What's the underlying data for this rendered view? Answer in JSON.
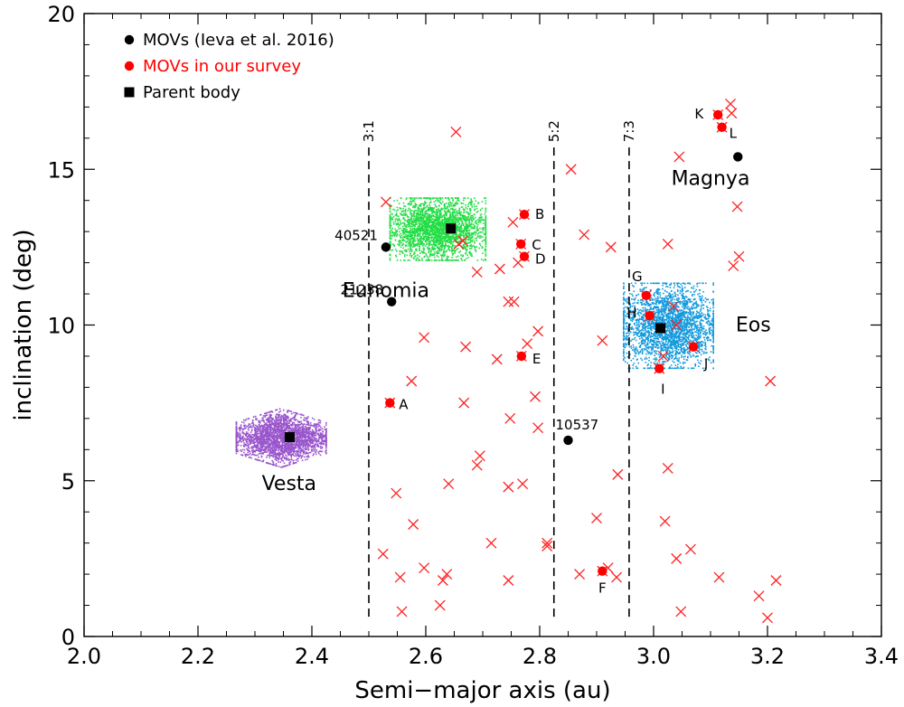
{
  "chart_data": {
    "type": "scatter",
    "xlabel": "Semi−major axis (au)",
    "ylabel": "inclination (deg)",
    "xlim": [
      2.0,
      3.4
    ],
    "ylim": [
      0,
      20
    ],
    "xticks": [
      "2.0",
      "2.2",
      "2.4",
      "2.6",
      "2.8",
      "3.0",
      "3.2",
      "3.4"
    ],
    "yticks": [
      "0",
      "5",
      "10",
      "15",
      "20"
    ],
    "colors": {
      "movs": "#000000",
      "survey": "#ff0000",
      "cross": "#ff2020",
      "vesta": "#9955cc",
      "eunomia": "#22dd44",
      "eos": "#1199dd"
    },
    "legend": [
      {
        "label": "MOVs (Ieva et al. 2016)",
        "color": "#000000",
        "marker": "circle"
      },
      {
        "label": "MOVs in our survey",
        "color": "#ff0000",
        "marker": "circle"
      },
      {
        "label": "Parent body",
        "color": "#000000",
        "marker": "square"
      }
    ],
    "resonances": [
      {
        "label": "3:1",
        "a": 2.5,
        "i_low": 0.6,
        "i_high": 15.7
      },
      {
        "label": "5:2",
        "a": 2.825,
        "i_low": 0.6,
        "i_high": 15.7
      },
      {
        "label": "7:3",
        "a": 2.957,
        "i_low": 0.6,
        "i_high": 15.7
      }
    ],
    "families": [
      {
        "name": "Vesta",
        "color": "#9955cc",
        "a_center": 2.345,
        "i_center": 6.4,
        "a_halfwidth": 0.075,
        "i_halfwidth": 0.9,
        "label_a": 2.36,
        "label_i": 4.7
      },
      {
        "name": "Eunomia",
        "color": "#22dd44",
        "a_center": 2.62,
        "i_center": 13.1,
        "a_halfwidth": 0.08,
        "i_halfwidth": 0.95,
        "label_a": 2.53,
        "label_i": 10.9
      },
      {
        "name": "Eos",
        "color": "#1199dd",
        "a_center": 3.025,
        "i_center": 10.0,
        "a_halfwidth": 0.075,
        "i_halfwidth": 1.3,
        "label_a": 3.175,
        "label_i": 9.8
      }
    ],
    "extra_labels": [
      {
        "text": "Magnya",
        "a": 3.1,
        "i": 14.5
      }
    ],
    "parent_bodies": [
      {
        "a": 2.361,
        "i": 6.4
      },
      {
        "a": 2.644,
        "i": 13.1
      },
      {
        "a": 3.012,
        "i": 9.9
      }
    ],
    "movs_ieva": [
      {
        "a": 2.53,
        "i": 12.5,
        "label": "40521"
      },
      {
        "a": 2.54,
        "i": 10.75,
        "label": "21238"
      },
      {
        "a": 2.85,
        "i": 6.3,
        "label": "10537"
      },
      {
        "a": 3.148,
        "i": 15.4,
        "label": ""
      }
    ],
    "movs_survey": [
      {
        "a": 2.537,
        "i": 7.5,
        "label": "A"
      },
      {
        "a": 2.773,
        "i": 13.55,
        "label": "B"
      },
      {
        "a": 2.767,
        "i": 12.6,
        "label": "C"
      },
      {
        "a": 2.773,
        "i": 12.2,
        "label": "D"
      },
      {
        "a": 2.768,
        "i": 9.0,
        "label": "E"
      },
      {
        "a": 2.91,
        "i": 2.1,
        "label": "F"
      },
      {
        "a": 2.987,
        "i": 10.95,
        "label": "G"
      },
      {
        "a": 2.993,
        "i": 10.3,
        "label": "H"
      },
      {
        "a": 3.01,
        "i": 8.6,
        "label": "I"
      },
      {
        "a": 3.07,
        "i": 9.3,
        "label": "J"
      },
      {
        "a": 3.113,
        "i": 16.75,
        "label": "K"
      },
      {
        "a": 3.12,
        "i": 16.35,
        "label": "L"
      }
    ],
    "other_crosses": [
      [
        2.525,
        2.65
      ],
      [
        2.555,
        1.9
      ],
      [
        2.558,
        0.8
      ],
      [
        2.548,
        4.6
      ],
      [
        2.578,
        3.6
      ],
      [
        2.575,
        8.2
      ],
      [
        2.53,
        13.95
      ],
      [
        2.597,
        9.6
      ],
      [
        2.597,
        2.2
      ],
      [
        2.625,
        1.0
      ],
      [
        2.63,
        1.8
      ],
      [
        2.637,
        2.0
      ],
      [
        2.658,
        12.6
      ],
      [
        2.665,
        12.7
      ],
      [
        2.667,
        7.5
      ],
      [
        2.67,
        9.3
      ],
      [
        2.653,
        16.2
      ],
      [
        2.64,
        4.9
      ],
      [
        2.69,
        5.5
      ],
      [
        2.695,
        5.8
      ],
      [
        2.69,
        11.7
      ],
      [
        2.715,
        3.0
      ],
      [
        2.725,
        8.9
      ],
      [
        2.73,
        11.8
      ],
      [
        2.745,
        10.75
      ],
      [
        2.748,
        7.0
      ],
      [
        2.745,
        4.8
      ],
      [
        2.755,
        10.75
      ],
      [
        2.753,
        13.3
      ],
      [
        2.762,
        12.0
      ],
      [
        2.77,
        4.9
      ],
      [
        2.778,
        9.4
      ],
      [
        2.792,
        7.7
      ],
      [
        2.797,
        9.8
      ],
      [
        2.797,
        6.7
      ],
      [
        2.745,
        1.8
      ],
      [
        2.813,
        3.0
      ],
      [
        2.813,
        2.9
      ],
      [
        2.855,
        15.0
      ],
      [
        2.87,
        2.0
      ],
      [
        2.878,
        12.9
      ],
      [
        2.9,
        3.8
      ],
      [
        2.91,
        9.5
      ],
      [
        2.92,
        2.2
      ],
      [
        2.925,
        12.5
      ],
      [
        2.937,
        5.2
      ],
      [
        2.935,
        1.9
      ],
      [
        3.017,
        9.0
      ],
      [
        3.02,
        3.7
      ],
      [
        3.025,
        12.6
      ],
      [
        3.025,
        5.4
      ],
      [
        3.035,
        10.6
      ],
      [
        3.04,
        2.5
      ],
      [
        3.045,
        15.4
      ],
      [
        3.048,
        0.8
      ],
      [
        3.065,
        2.8
      ],
      [
        3.115,
        1.9
      ],
      [
        3.135,
        17.1
      ],
      [
        3.137,
        16.8
      ],
      [
        3.14,
        11.9
      ],
      [
        3.147,
        13.8
      ],
      [
        3.15,
        12.2
      ],
      [
        3.185,
        1.3
      ],
      [
        3.205,
        8.2
      ],
      [
        3.2,
        0.6
      ],
      [
        3.215,
        1.8
      ],
      [
        3.04,
        10.0
      ]
    ]
  }
}
